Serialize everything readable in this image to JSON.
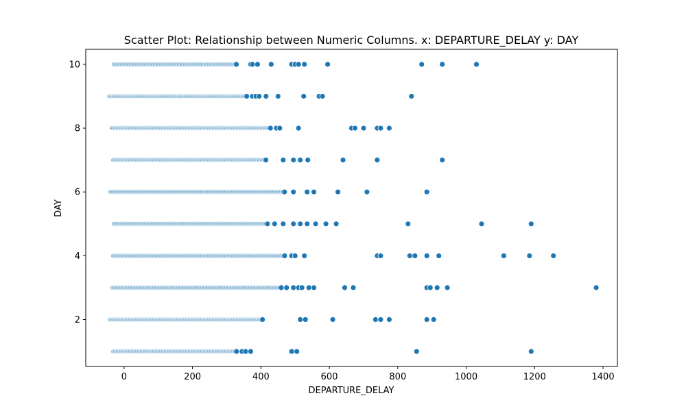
{
  "chart_data": {
    "type": "scatter",
    "title": "Scatter Plot: Relationship between Numeric Columns. x: DEPARTURE_DELAY y: DAY",
    "xlabel": "DEPARTURE_DELAY",
    "ylabel": "DAY",
    "xlim": [
      -112,
      1442
    ],
    "ylim": [
      0.53,
      10.47
    ],
    "xticks": [
      0,
      200,
      400,
      600,
      800,
      1000,
      1200,
      1400
    ],
    "yticks": [
      2,
      4,
      6,
      8,
      10
    ],
    "grid": false,
    "marker_color": "#1f77b4",
    "marker_edge_color": "#ffffff",
    "rows": [
      {
        "y": 10,
        "x_dense_range": [
          -28,
          330
        ],
        "x_extra": [
          370,
          375,
          390,
          430,
          490,
          500,
          510,
          527,
          595,
          870,
          930,
          1030
        ]
      },
      {
        "y": 9,
        "x_dense_range": [
          -42,
          360
        ],
        "x_extra": [
          375,
          385,
          395,
          415,
          450,
          525,
          570,
          580,
          840
        ]
      },
      {
        "y": 8,
        "x_dense_range": [
          -35,
          430
        ],
        "x_extra": [
          445,
          455,
          510,
          665,
          675,
          700,
          740,
          750,
          775
        ]
      },
      {
        "y": 7,
        "x_dense_range": [
          -30,
          415
        ],
        "x_extra": [
          465,
          495,
          515,
          537,
          640,
          740,
          930
        ]
      },
      {
        "y": 6,
        "x_dense_range": [
          -38,
          470
        ],
        "x_extra": [
          495,
          535,
          555,
          625,
          710,
          885
        ]
      },
      {
        "y": 5,
        "x_dense_range": [
          -28,
          420
        ],
        "x_extra": [
          440,
          465,
          495,
          515,
          535,
          560,
          590,
          620,
          830,
          1045,
          1190
        ]
      },
      {
        "y": 4,
        "x_dense_range": [
          -30,
          470
        ],
        "x_extra": [
          490,
          500,
          527,
          740,
          750,
          835,
          850,
          885,
          920,
          1110,
          1185,
          1255
        ]
      },
      {
        "y": 3,
        "x_dense_range": [
          -32,
          460
        ],
        "x_extra": [
          475,
          495,
          510,
          520,
          540,
          555,
          645,
          670,
          885,
          895,
          915,
          945,
          1380
        ]
      },
      {
        "y": 2,
        "x_dense_range": [
          -40,
          405
        ],
        "x_extra": [
          515,
          530,
          610,
          735,
          750,
          775,
          885,
          905
        ]
      },
      {
        "y": 1,
        "x_dense_range": [
          -30,
          330
        ],
        "x_extra": [
          345,
          355,
          370,
          490,
          505,
          855,
          1190
        ]
      }
    ]
  }
}
